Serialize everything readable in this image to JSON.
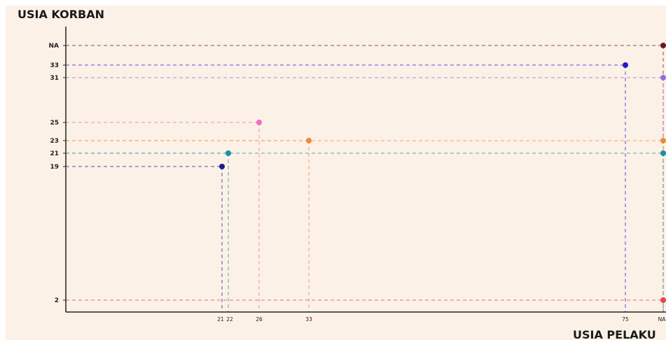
{
  "chart_data": {
    "type": "scatter",
    "ylabel": "USIA KORBAN",
    "xlabel": "USIA PELAKU",
    "x_ticks": [
      "21",
      "22",
      "26",
      "33",
      "75",
      "NA"
    ],
    "y_ticks": [
      "2",
      "19",
      "21",
      "23",
      "25",
      "31",
      "33",
      "NA"
    ],
    "grid": "dashed drop lines from each point to both axes",
    "points": [
      {
        "x": "21",
        "y": "19",
        "color": "#1f1a8c"
      },
      {
        "x": "22",
        "y": "21",
        "color": "#17929c"
      },
      {
        "x": "26",
        "y": "25",
        "color": "#f06cc0"
      },
      {
        "x": "33",
        "y": "23",
        "color": "#ee8a3c"
      },
      {
        "x": "75",
        "y": "33",
        "color": "#2618cc"
      },
      {
        "x": "NA",
        "y": "NA",
        "color": "#6b1a1a"
      },
      {
        "x": "NA",
        "y": "31",
        "color": "#9b6be0"
      },
      {
        "x": "NA",
        "y": "23",
        "color": "#ee8a3c"
      },
      {
        "x": "NA",
        "y": "21",
        "color": "#17929c"
      },
      {
        "x": "NA",
        "y": "2",
        "color": "#e0464e"
      }
    ],
    "colors": {
      "background": "#fbf1e7",
      "axis": "#222222"
    }
  }
}
